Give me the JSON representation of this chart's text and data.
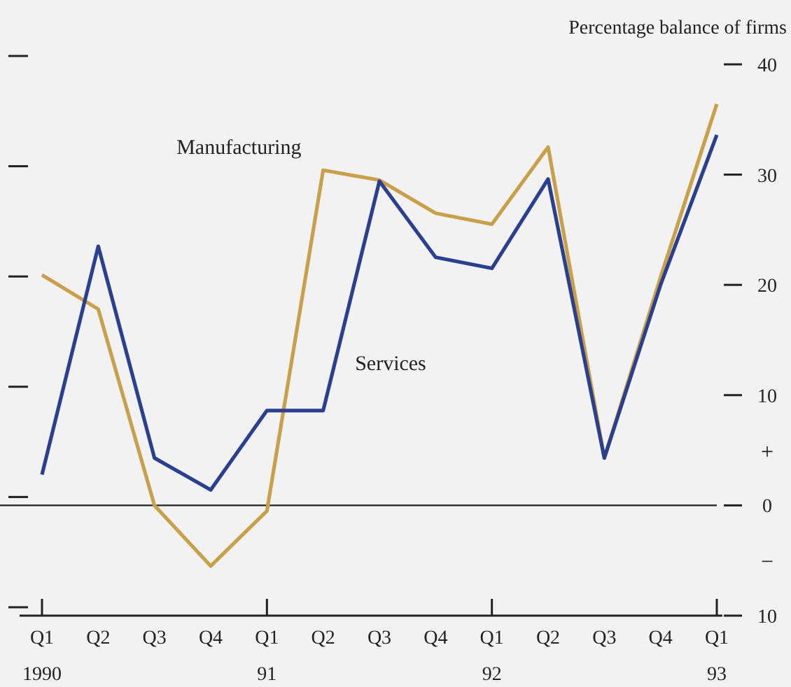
{
  "chart_data": {
    "type": "line",
    "ylabel": "Percentage balance of firms",
    "categories": [
      "Q1\n1990",
      "Q2",
      "Q3",
      "Q4",
      "Q1\n91",
      "Q2",
      "Q3",
      "Q4",
      "Q1\n92",
      "Q2",
      "Q3",
      "Q4",
      "Q1\n93"
    ],
    "series": [
      {
        "name": "Manufacturing",
        "color": "#c9a04a",
        "values": [
          20.9,
          17.8,
          0,
          -5.5,
          -0.5,
          30.4,
          29.5,
          26.5,
          25.5,
          32.5,
          4.3,
          20.7,
          36.4
        ]
      },
      {
        "name": "Services",
        "color": "#2b3f8f",
        "values": [
          2.8,
          23.5,
          4.3,
          1.4,
          8.6,
          8.6,
          29.4,
          22.5,
          21.5,
          29.6,
          4.3,
          20,
          33.6
        ]
      }
    ],
    "ylim": [
      -10,
      40
    ],
    "yticks": [
      {
        "value": -10,
        "label": "10"
      },
      0,
      10,
      20,
      30,
      40
    ],
    "ref_lines": [
      {
        "axis": "y",
        "value": 0,
        "color": "#222222"
      }
    ],
    "annotations": [
      "+",
      "−"
    ],
    "legend": false,
    "grid": false,
    "marker": "none",
    "line_style": "solid"
  }
}
